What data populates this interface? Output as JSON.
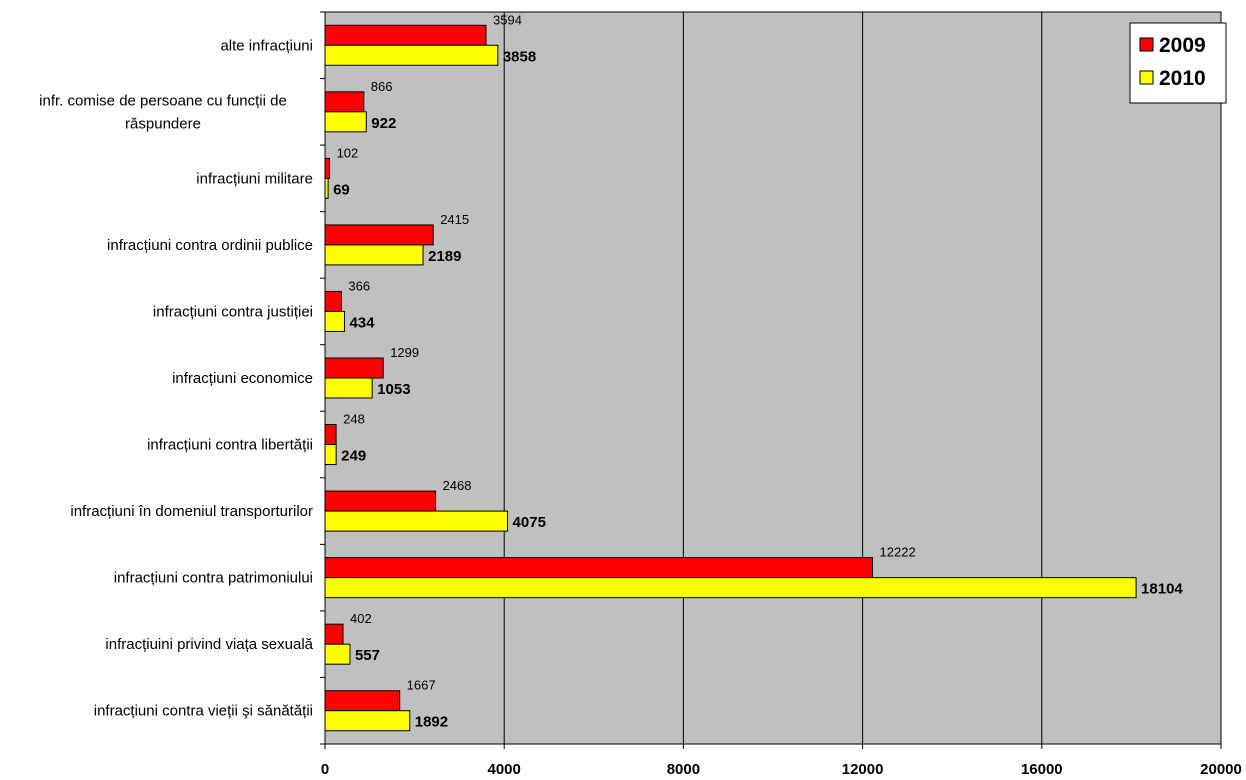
{
  "chart_data": {
    "type": "bar",
    "orientation": "horizontal",
    "categories": [
      [
        "alte infracțiuni"
      ],
      [
        "infr. comise de persoane cu funcții de",
        "răspundere"
      ],
      [
        "infracțiuni militare"
      ],
      [
        "infracțiuni contra ordinii publice"
      ],
      [
        "infracțiuni contra justiției"
      ],
      [
        "infracțiuni economice"
      ],
      [
        "infracțiuni contra libertății"
      ],
      [
        "infracțiuni în domeniul transporturilor"
      ],
      [
        "infracțiuni contra patrimoniului"
      ],
      [
        "infracțiuini privind viața sexuală"
      ],
      [
        "infracțiuni contra vieții şi sănătății"
      ]
    ],
    "series": [
      {
        "name": "2009",
        "color": "#ff0000",
        "values": [
          3594,
          866,
          102,
          2415,
          366,
          1299,
          248,
          2468,
          12222,
          402,
          1667
        ]
      },
      {
        "name": "2010",
        "color": "#ffff00",
        "values": [
          3858,
          922,
          69,
          2189,
          434,
          1053,
          249,
          4075,
          18104,
          557,
          1892
        ]
      }
    ],
    "xlim": [
      0,
      20000
    ],
    "xticks": [
      "0",
      "4000",
      "8000",
      "12000",
      "16000",
      "20000"
    ],
    "grid": "vertical",
    "plot_background": "#c0c0c0",
    "legend": "top-right"
  }
}
